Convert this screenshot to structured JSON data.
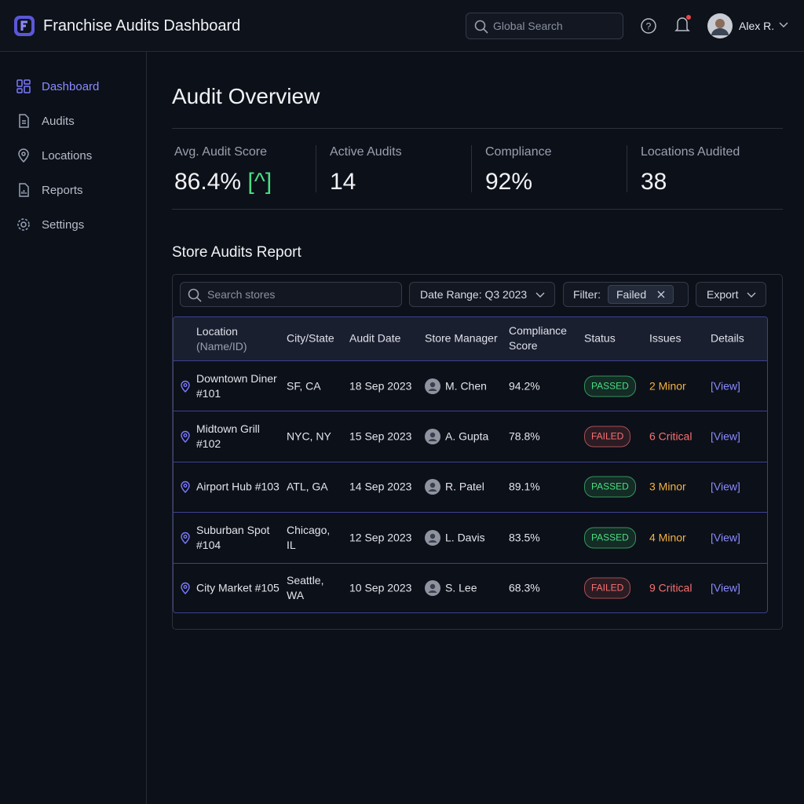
{
  "header": {
    "title": "Franchise Audits Dashboard",
    "search_placeholder": "Global Search",
    "user": "Alex R."
  },
  "nav": [
    "Dashboard",
    "Audits",
    "Locations",
    "Reports",
    "Settings"
  ],
  "page_title": "Audit Overview",
  "kpis": [
    {
      "label": "Avg. Audit Score",
      "value": "86.4%",
      "trend": "[^]"
    },
    {
      "label": "Active Audits",
      "value": "14"
    },
    {
      "label": "Compliance",
      "value": "92%"
    },
    {
      "label": "Locations Audited",
      "value": "38"
    }
  ],
  "report": {
    "title": "Store Audits Report",
    "search_placeholder": "Search stores",
    "date_range": "Date Range: Q3 2023",
    "filter_label": "Filter:",
    "filter_chip": "Failed",
    "export": "Export",
    "columns": [
      "Location",
      "City/State",
      "Audit Date",
      "Store Manager",
      "Compliance Score",
      "Status",
      "Issues",
      "Details"
    ],
    "location_sub": "(Name/ID)",
    "rows": [
      {
        "location": "Downtown Diner #101",
        "city": "SF, CA",
        "date": "18 Sep 2023",
        "manager": "M. Chen",
        "score": "94.2%",
        "status": "PASSED",
        "status_color": "#4ade80",
        "issues": "2 Minor",
        "issues_color": "#f5b342",
        "details": "[View]"
      },
      {
        "location": "Midtown Grill #102",
        "city": "NYC, NY",
        "date": "15 Sep 2023",
        "manager": "A. Gupta",
        "score": "78.8%",
        "status": "FAILED",
        "status_color": "#f87171",
        "issues": "6 Critical",
        "issues_color": "#f87171",
        "details": "[View]"
      },
      {
        "location": "Airport Hub #103",
        "city": "ATL, GA",
        "date": "14 Sep 2023",
        "manager": "R. Patel",
        "score": "89.1%",
        "status": "PASSED",
        "status_color": "#4ade80",
        "issues": "3 Minor",
        "issues_color": "#f5b342",
        "details": "[View]"
      },
      {
        "location": "Suburban Spot #104",
        "city": "Chicago, IL",
        "date": "12 Sep 2023",
        "manager": "L. Davis",
        "score": "83.5%",
        "status": "PASSED",
        "status_color": "#4ade80",
        "issues": "4 Minor",
        "issues_color": "#f5b342",
        "details": "[View]"
      },
      {
        "location": "City Market #105",
        "city": "Seattle, WA",
        "date": "10 Sep 2023",
        "manager": "S. Lee",
        "score": "68.3%",
        "status": "FAILED",
        "status_color": "#f87171",
        "issues": "9 Critical",
        "issues_color": "#f87171",
        "details": "[View]"
      }
    ]
  }
}
